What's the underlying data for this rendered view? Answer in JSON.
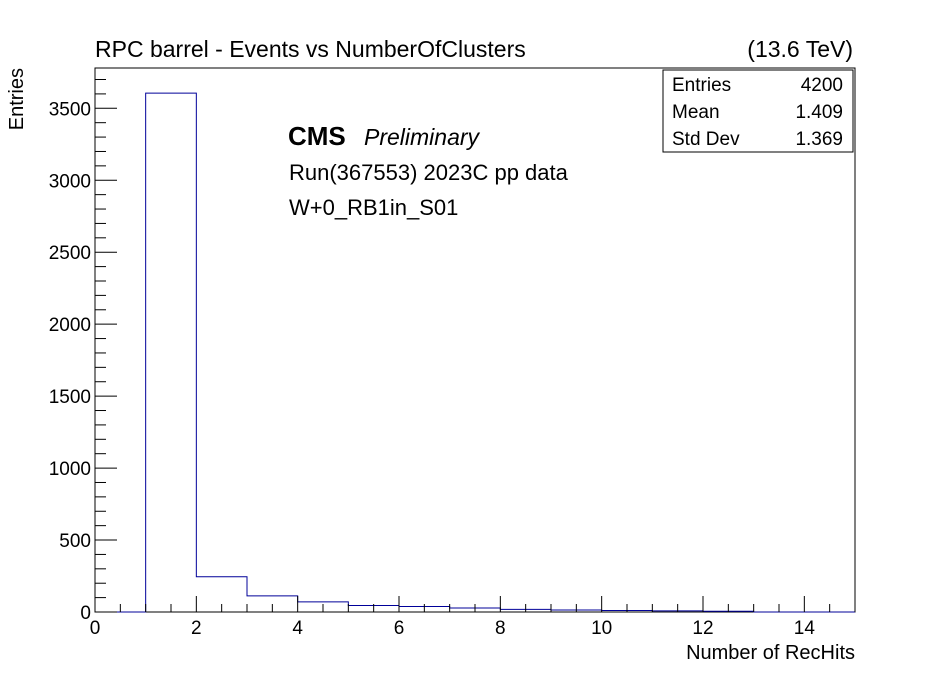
{
  "header": {
    "title": "RPC barrel - Events vs NumberOfClusters",
    "energy": "(13.6 TeV)"
  },
  "labels": {
    "cms": "CMS",
    "preliminary": "Preliminary",
    "run": "Run(367553) 2023C pp data",
    "chamber": "W+0_RB1in_S01"
  },
  "stats": {
    "rows": [
      {
        "label": "Entries",
        "value": "4200"
      },
      {
        "label": "Mean",
        "value": "1.409"
      },
      {
        "label": "Std Dev",
        "value": "1.369"
      }
    ]
  },
  "colors": {
    "histogram_line": "#000099",
    "frame": "#000000"
  },
  "chart_data": {
    "type": "bar",
    "histogram": true,
    "title": "RPC barrel - Events vs NumberOfClusters",
    "xlabel": "Number of RecHits",
    "ylabel": "Entries",
    "xlim": [
      0,
      15
    ],
    "ylim": [
      0,
      3780
    ],
    "bin_edges": [
      0,
      1,
      2,
      3,
      4,
      5,
      6,
      7,
      8,
      9,
      10,
      11,
      12,
      13,
      14,
      15
    ],
    "values": [
      0,
      3605,
      245,
      112,
      70,
      45,
      38,
      28,
      18,
      14,
      10,
      8,
      5,
      0,
      0
    ],
    "x_ticks": [
      0,
      2,
      4,
      6,
      8,
      10,
      12,
      14
    ],
    "y_ticks": [
      0,
      500,
      1000,
      1500,
      2000,
      2500,
      3000,
      3500
    ],
    "grid": false,
    "legend": "none"
  }
}
